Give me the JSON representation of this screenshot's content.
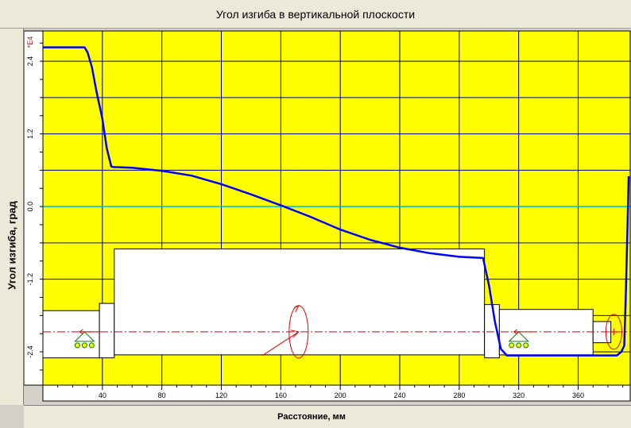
{
  "window": {
    "title": "Угол изгиба в вертикальной плоскости"
  },
  "chart_data": {
    "type": "line",
    "title": "Угол изгиба в вертикальной плоскости",
    "xlabel": "Расстояние, мм",
    "ylabel": "Угол изгиба, град",
    "y_multiplier": "*E4",
    "xlim": [
      0,
      395
    ],
    "ylim": [
      -2.95,
      2.9
    ],
    "x_ticks": [
      40,
      80,
      120,
      160,
      200,
      240,
      280,
      320,
      360
    ],
    "y_ticks": [
      2.4,
      1.2,
      0.0,
      -1.2,
      -2.4
    ],
    "y_tick_labels": [
      "2.4",
      "1.2",
      "0.0",
      "-1.2",
      "-2.4"
    ],
    "grid": true,
    "background_color": "#ffff00",
    "grid_color": "#0000a0",
    "line_color": "#0000ff",
    "zero_line_color": "#00c0c0",
    "series": [
      {
        "x": [
          0,
          12,
          28,
          30,
          33,
          36,
          40,
          43,
          46,
          48,
          50,
          60,
          80,
          100,
          120,
          140,
          160,
          180,
          200,
          220,
          240,
          260,
          280,
          296,
          300,
          304,
          308,
          312,
          316,
          320,
          340,
          360,
          380,
          386,
          389,
          391,
          392,
          393,
          394
        ],
        "y": [
          2.63,
          2.63,
          2.63,
          2.55,
          2.3,
          1.9,
          1.45,
          0.96,
          0.66,
          0.65,
          0.65,
          0.64,
          0.59,
          0.51,
          0.37,
          0.2,
          0.02,
          -0.17,
          -0.38,
          -0.55,
          -0.68,
          -0.77,
          -0.83,
          -0.85,
          -1.3,
          -1.9,
          -2.35,
          -2.46,
          -2.46,
          -2.46,
          -2.46,
          -2.46,
          -2.46,
          -2.46,
          -2.4,
          -2.3,
          -1.5,
          -0.5,
          0.5
        ]
      }
    ],
    "shaft_sections": [
      {
        "x": [
          0,
          38
        ],
        "y": [
          -1.72,
          -2.5
        ]
      },
      {
        "x": [
          38,
          48
        ],
        "y": [
          -1.6,
          -2.5
        ]
      },
      {
        "x": [
          48,
          297
        ],
        "y": [
          -0.7,
          -2.45
        ]
      },
      {
        "x": [
          297,
          307
        ],
        "y": [
          -1.62,
          -2.5
        ]
      },
      {
        "x": [
          307,
          370
        ],
        "y": [
          -1.7,
          -2.45
        ]
      },
      {
        "x": [
          370,
          382
        ],
        "y": [
          -1.9,
          -2.25
        ]
      }
    ],
    "supports_x": [
      28,
      320
    ],
    "axis_y": -2.07
  }
}
